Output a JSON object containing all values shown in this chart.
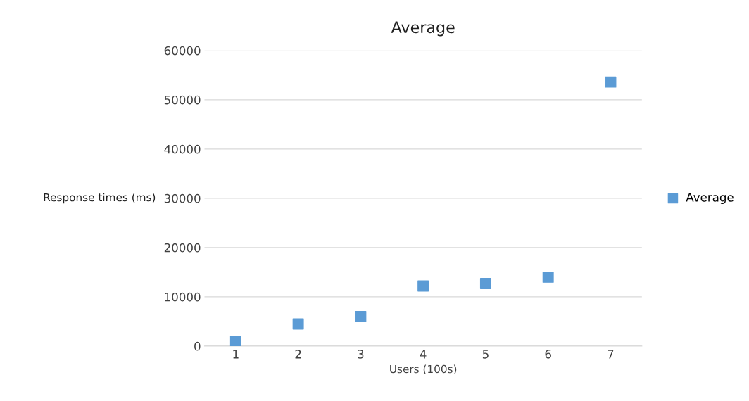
{
  "chart_data": {
    "type": "scatter",
    "title": "Average",
    "xlabel": "Users (100s)",
    "ylabel": "Response times (ms)",
    "categories": [
      "1",
      "2",
      "3",
      "4",
      "5",
      "6",
      "7"
    ],
    "series": [
      {
        "name": "Average",
        "color": "#5b9bd5",
        "values": [
          1000,
          4500,
          6000,
          12200,
          12700,
          14000,
          53600
        ]
      }
    ],
    "ylim": [
      0,
      60000
    ],
    "yticks": [
      0,
      10000,
      20000,
      30000,
      40000,
      50000,
      60000
    ],
    "grid": "y",
    "legend": "right",
    "marker": "square"
  }
}
